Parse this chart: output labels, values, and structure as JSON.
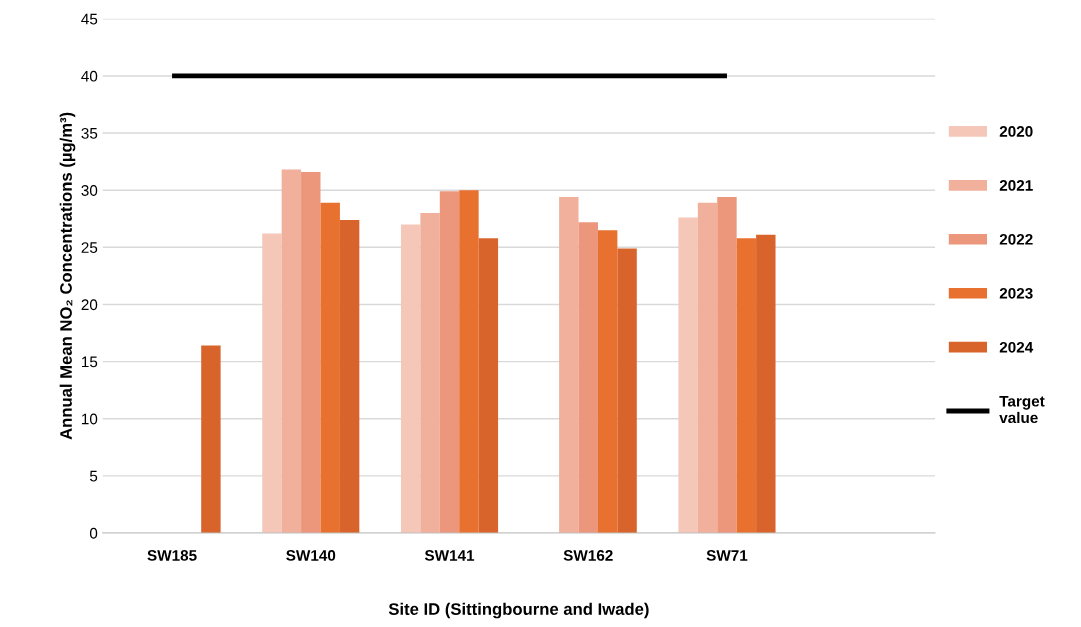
{
  "chart_data": {
    "type": "bar",
    "xlabel": "Site ID (Sittingbourne and Iwade)",
    "ylabel": "Annual Mean NO₂ Concentrations (µg/m³)",
    "categories": [
      "SW185",
      "SW140",
      "SW141",
      "SW162",
      "SW71",
      null
    ],
    "series": [
      {
        "name": "2020",
        "color": "#f4c7b8",
        "values": [
          null,
          26.2,
          27.0,
          null,
          27.6,
          null
        ]
      },
      {
        "name": "2021",
        "color": "#f0b09c",
        "values": [
          null,
          31.8,
          28.0,
          29.4,
          28.9,
          null
        ]
      },
      {
        "name": "2022",
        "color": "#ec977c",
        "values": [
          null,
          31.6,
          29.9,
          27.2,
          29.4,
          null
        ]
      },
      {
        "name": "2023",
        "color": "#e9712f",
        "values": [
          null,
          28.9,
          30.0,
          26.5,
          25.8,
          null
        ]
      },
      {
        "name": "2024",
        "color": "#d8642c",
        "values": [
          16.4,
          27.4,
          25.8,
          24.9,
          26.1,
          null
        ]
      },
      {
        "name": "Target value",
        "type": "line",
        "color": "#000000",
        "values": [
          40,
          40,
          40,
          40,
          40,
          null
        ]
      }
    ],
    "ylim": [
      0,
      45
    ],
    "yticks": [
      0,
      5,
      10,
      15,
      20,
      25,
      30,
      35,
      40,
      45
    ],
    "grid": "y",
    "legend": "right"
  }
}
